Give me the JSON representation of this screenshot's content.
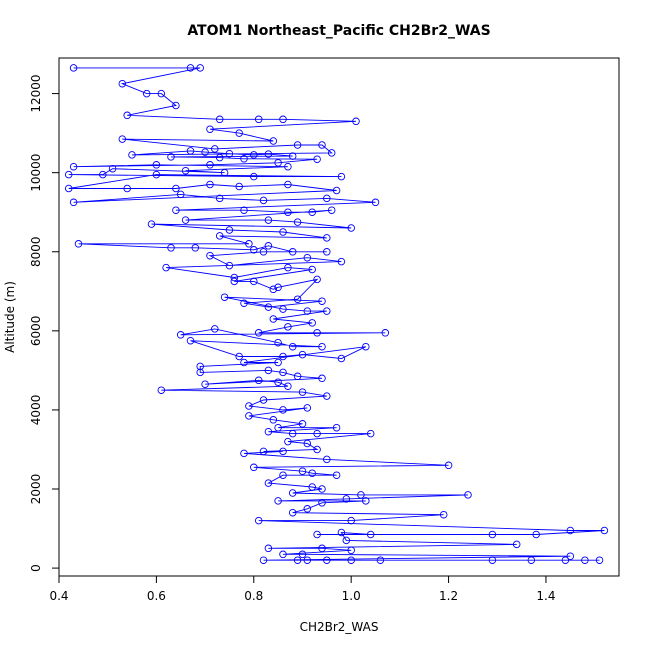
{
  "chart_data": {
    "type": "line",
    "title": "ATOM1 Northeast_Pacific CH2Br2_WAS",
    "xlabel": "CH2Br2_WAS",
    "ylabel": "Altitude (m)",
    "xlim": [
      0.4,
      1.55
    ],
    "ylim": [
      -200,
      12900
    ],
    "x_ticks": [
      "0.4",
      "0.6",
      "0.8",
      "1.0",
      "1.2",
      "1.4"
    ],
    "y_ticks": [
      "0",
      "2000",
      "4000",
      "6000",
      "8000",
      "10000",
      "12000"
    ],
    "grid": false,
    "legend": "none",
    "marker": "open-circle",
    "series": [
      {
        "color": "#0000ff",
        "points": [
          [
            0.43,
            12650
          ],
          [
            0.67,
            12650
          ],
          [
            0.69,
            12650
          ],
          [
            0.53,
            12250
          ],
          [
            0.58,
            12000
          ],
          [
            0.61,
            12000
          ],
          [
            0.64,
            11700
          ],
          [
            0.54,
            11450
          ],
          [
            0.73,
            11350
          ],
          [
            0.81,
            11350
          ],
          [
            0.86,
            11350
          ],
          [
            1.01,
            11300
          ],
          [
            0.71,
            11100
          ],
          [
            0.77,
            11000
          ],
          [
            0.84,
            10800
          ],
          [
            0.53,
            10850
          ],
          [
            0.72,
            10600
          ],
          [
            0.89,
            10700
          ],
          [
            0.94,
            10700
          ],
          [
            0.96,
            10500
          ],
          [
            0.55,
            10450
          ],
          [
            0.67,
            10550
          ],
          [
            0.7,
            10520
          ],
          [
            0.75,
            10480
          ],
          [
            0.8,
            10450
          ],
          [
            0.83,
            10470
          ],
          [
            0.88,
            10420
          ],
          [
            0.63,
            10400
          ],
          [
            0.73,
            10380
          ],
          [
            0.78,
            10350
          ],
          [
            0.93,
            10340
          ],
          [
            0.85,
            10250
          ],
          [
            0.71,
            10200
          ],
          [
            0.43,
            10150
          ],
          [
            0.6,
            10200
          ],
          [
            0.87,
            10150
          ],
          [
            0.66,
            10050
          ],
          [
            0.74,
            10000
          ],
          [
            0.51,
            10100
          ],
          [
            0.49,
            9950
          ],
          [
            0.42,
            9950
          ],
          [
            0.8,
            9900
          ],
          [
            0.98,
            9900
          ],
          [
            0.6,
            9950
          ],
          [
            0.42,
            9600
          ],
          [
            0.54,
            9600
          ],
          [
            0.64,
            9600
          ],
          [
            0.71,
            9700
          ],
          [
            0.77,
            9650
          ],
          [
            0.87,
            9700
          ],
          [
            0.97,
            9550
          ],
          [
            0.43,
            9250
          ],
          [
            0.65,
            9450
          ],
          [
            0.73,
            9350
          ],
          [
            0.82,
            9300
          ],
          [
            0.95,
            9350
          ],
          [
            1.05,
            9250
          ],
          [
            0.64,
            9050
          ],
          [
            0.78,
            9050
          ],
          [
            0.87,
            9000
          ],
          [
            0.92,
            9000
          ],
          [
            0.96,
            9050
          ],
          [
            0.66,
            8800
          ],
          [
            0.83,
            8800
          ],
          [
            0.89,
            8750
          ],
          [
            1.0,
            8600
          ],
          [
            0.59,
            8700
          ],
          [
            0.75,
            8550
          ],
          [
            0.86,
            8500
          ],
          [
            0.95,
            8350
          ],
          [
            0.73,
            8400
          ],
          [
            0.79,
            8200
          ],
          [
            0.44,
            8200
          ],
          [
            0.63,
            8100
          ],
          [
            0.68,
            8100
          ],
          [
            0.8,
            8050
          ],
          [
            0.83,
            8150
          ],
          [
            0.88,
            8000
          ],
          [
            0.95,
            8000
          ],
          [
            0.82,
            8000
          ],
          [
            0.71,
            7900
          ],
          [
            0.75,
            7650
          ],
          [
            0.91,
            7850
          ],
          [
            0.98,
            7750
          ],
          [
            0.62,
            7600
          ],
          [
            0.76,
            7350
          ],
          [
            0.87,
            7600
          ],
          [
            0.92,
            7550
          ],
          [
            0.76,
            7250
          ],
          [
            0.8,
            7250
          ],
          [
            0.84,
            7050
          ],
          [
            0.85,
            7100
          ],
          [
            0.93,
            7300
          ],
          [
            0.89,
            6800
          ],
          [
            0.78,
            6700
          ],
          [
            0.83,
            6600
          ],
          [
            0.94,
            6750
          ],
          [
            0.74,
            6850
          ],
          [
            0.86,
            6550
          ],
          [
            0.91,
            6500
          ],
          [
            0.95,
            6500
          ],
          [
            0.84,
            6300
          ],
          [
            0.92,
            6200
          ],
          [
            0.87,
            6100
          ],
          [
            0.81,
            5950
          ],
          [
            0.93,
            5950
          ],
          [
            1.07,
            5950
          ],
          [
            0.65,
            5900
          ],
          [
            0.72,
            6050
          ],
          [
            0.85,
            5700
          ],
          [
            0.88,
            5600
          ],
          [
            0.94,
            5600
          ],
          [
            0.67,
            5750
          ],
          [
            0.77,
            5350
          ],
          [
            0.86,
            5350
          ],
          [
            0.9,
            5400
          ],
          [
            0.98,
            5300
          ],
          [
            1.03,
            5600
          ],
          [
            0.78,
            5200
          ],
          [
            0.85,
            5200
          ],
          [
            0.69,
            5100
          ],
          [
            0.69,
            4950
          ],
          [
            0.83,
            5000
          ],
          [
            0.86,
            4950
          ],
          [
            0.89,
            4850
          ],
          [
            0.94,
            4800
          ],
          [
            0.7,
            4650
          ],
          [
            0.81,
            4750
          ],
          [
            0.85,
            4700
          ],
          [
            0.87,
            4600
          ],
          [
            0.61,
            4500
          ],
          [
            0.9,
            4450
          ],
          [
            0.95,
            4350
          ],
          [
            0.82,
            4250
          ],
          [
            0.79,
            4100
          ],
          [
            0.86,
            4000
          ],
          [
            0.91,
            4050
          ],
          [
            0.79,
            3850
          ],
          [
            0.84,
            3750
          ],
          [
            0.9,
            3650
          ],
          [
            0.85,
            3550
          ],
          [
            0.97,
            3550
          ],
          [
            0.83,
            3450
          ],
          [
            0.88,
            3400
          ],
          [
            0.93,
            3400
          ],
          [
            1.04,
            3400
          ],
          [
            0.87,
            3200
          ],
          [
            0.91,
            3150
          ],
          [
            0.93,
            3000
          ],
          [
            0.82,
            2950
          ],
          [
            0.86,
            2950
          ],
          [
            0.78,
            2900
          ],
          [
            0.95,
            2750
          ],
          [
            1.2,
            2600
          ],
          [
            0.8,
            2550
          ],
          [
            0.9,
            2450
          ],
          [
            0.92,
            2400
          ],
          [
            0.97,
            2350
          ],
          [
            0.86,
            2350
          ],
          [
            0.83,
            2150
          ],
          [
            0.92,
            2050
          ],
          [
            0.94,
            2000
          ],
          [
            0.88,
            1900
          ],
          [
            1.02,
            1850
          ],
          [
            1.24,
            1850
          ],
          [
            0.99,
            1750
          ],
          [
            0.85,
            1700
          ],
          [
            1.03,
            1700
          ],
          [
            0.94,
            1650
          ],
          [
            0.91,
            1500
          ],
          [
            0.88,
            1400
          ],
          [
            1.19,
            1350
          ],
          [
            1.0,
            1200
          ],
          [
            0.81,
            1200
          ],
          [
            1.45,
            950
          ],
          [
            1.52,
            950
          ],
          [
            1.38,
            850
          ],
          [
            1.29,
            850
          ],
          [
            0.93,
            850
          ],
          [
            1.04,
            850
          ],
          [
            0.98,
            900
          ],
          [
            0.99,
            700
          ],
          [
            1.34,
            600
          ],
          [
            0.83,
            500
          ],
          [
            0.94,
            500
          ],
          [
            1.0,
            450
          ],
          [
            0.86,
            350
          ],
          [
            0.9,
            350
          ],
          [
            1.45,
            300
          ],
          [
            0.82,
            200
          ],
          [
            0.89,
            200
          ],
          [
            0.91,
            200
          ],
          [
            0.95,
            200
          ],
          [
            1.0,
            200
          ],
          [
            1.06,
            200
          ],
          [
            1.29,
            200
          ],
          [
            1.37,
            200
          ],
          [
            1.44,
            200
          ],
          [
            1.48,
            200
          ],
          [
            1.51,
            200
          ]
        ]
      }
    ]
  }
}
